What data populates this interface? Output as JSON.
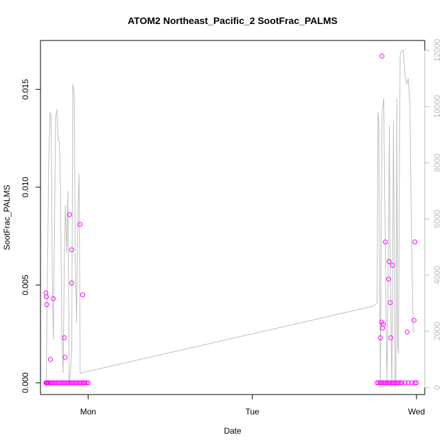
{
  "chart_data": {
    "type": "scatter",
    "title": "ATOM2 Northeast_Pacific_2 SootFrac_PALMS",
    "xlabel": "Date",
    "ylabel": "SootFrac_PALMS",
    "y2label": "",
    "x_ticks": [
      "Mon",
      "Tue",
      "Wed"
    ],
    "x_tick_positions": [
      0,
      1,
      2
    ],
    "xlim": [
      -0.29,
      2.05
    ],
    "ylim": [
      -0.0006,
      0.0175
    ],
    "y_ticks": [
      0.0,
      0.005,
      0.01,
      0.015
    ],
    "y_tick_labels": [
      "0.000",
      "0.005",
      "0.010",
      "0.015"
    ],
    "y2lim": [
      -250,
      12350
    ],
    "y2_ticks": [
      0,
      2000,
      4000,
      6000,
      8000,
      10000,
      12000
    ],
    "y2_tick_labels": [
      "0",
      "2000",
      "4000",
      "6000",
      "8000",
      "10000",
      "12000"
    ],
    "grid": false,
    "legend": "none",
    "colors": {
      "points": "#ff00ff",
      "altitude_line": "#bebebe",
      "axis": "#000000",
      "right_axis": "#bdbdbd"
    },
    "series": [
      {
        "role": "points",
        "x": [
          -0.257,
          -0.255,
          -0.253,
          -0.25,
          -0.245,
          -0.24,
          -0.23,
          -0.22,
          -0.21,
          -0.2,
          -0.19,
          -0.18,
          -0.17,
          -0.16,
          -0.15,
          -0.14,
          -0.13,
          -0.12,
          -0.11,
          -0.1,
          -0.09,
          -0.08,
          -0.07,
          -0.06,
          -0.05,
          -0.04,
          -0.03,
          -0.02,
          -0.01,
          0.0,
          -0.257,
          -0.254,
          -0.252,
          -0.23,
          -0.212,
          -0.145,
          -0.14,
          -0.113,
          -0.1,
          -0.1,
          -0.049,
          -0.033,
          1.76,
          1.77,
          1.78,
          1.79,
          1.8,
          1.81,
          1.82,
          1.83,
          1.84,
          1.85,
          1.86,
          1.87,
          1.88,
          1.89,
          1.9,
          1.91,
          1.93,
          1.95,
          1.97,
          1.99,
          2.0,
          1.78,
          1.787,
          1.79,
          1.793,
          1.797,
          1.81,
          1.83,
          1.833,
          1.84,
          1.843,
          1.853,
          1.943,
          1.985,
          1.99
        ],
        "y": [
          0.0,
          0.0,
          0.0,
          0.0,
          0.0,
          0.0,
          0.0,
          0.0,
          0.0,
          0.0,
          0.0,
          0.0,
          0.0,
          0.0,
          0.0,
          0.0,
          0.0,
          0.0,
          0.0,
          0.0,
          0.0,
          0.0,
          0.0,
          0.0,
          0.0,
          0.0,
          0.0,
          0.0,
          0.0,
          0.0,
          0.0046,
          0.0044,
          0.004,
          0.0012,
          0.0043,
          0.0023,
          0.0013,
          0.0086,
          0.0068,
          0.0051,
          0.0081,
          0.0045,
          0.0,
          0.0,
          0.0,
          0.0,
          0.0,
          0.0,
          0.0,
          0.0,
          0.0,
          0.0,
          0.0,
          0.0,
          0.0,
          0.0,
          0.0,
          0.0,
          0.0,
          0.0,
          0.0,
          0.0,
          0.0,
          0.0023,
          0.0031,
          0.0167,
          0.0028,
          0.003,
          0.0072,
          0.0053,
          0.0062,
          0.0041,
          0.0023,
          0.006,
          0.0026,
          0.0032,
          0.0072
        ]
      },
      {
        "role": "line",
        "x": [
          -0.255,
          -0.248,
          -0.24,
          -0.232,
          -0.225,
          -0.218,
          -0.212,
          -0.205,
          -0.198,
          -0.19,
          -0.183,
          -0.175,
          -0.168,
          -0.16,
          -0.152,
          -0.145,
          -0.138,
          -0.13,
          -0.123,
          -0.115,
          -0.108,
          -0.1,
          -0.093,
          -0.085,
          -0.078,
          -0.07,
          -0.063,
          -0.055,
          -0.048,
          -0.04,
          -0.033,
          -0.025,
          -0.018,
          -0.01,
          -0.003,
          1.74,
          1.76,
          1.765,
          1.77,
          1.78,
          1.785,
          1.79,
          1.8,
          1.81,
          1.82,
          1.83,
          1.835,
          1.84,
          1.85,
          1.86,
          1.87,
          1.875,
          1.88,
          1.885,
          1.89,
          1.9,
          1.91,
          1.92,
          1.93,
          1.94,
          1.95,
          1.96,
          1.97,
          1.98,
          1.99
        ],
        "y2": [
          0,
          4000,
          8000,
          9800,
          9700,
          4000,
          1700,
          5200,
          9600,
          9900,
          8800,
          8800,
          7000,
          2000,
          500,
          4500,
          6500,
          4800,
          7000,
          100,
          600,
          1200,
          10800,
          10500,
          4500,
          2300,
          6000,
          7600,
          500,
          500,
          550,
          550,
          550,
          560,
          570,
          2900,
          3000,
          9800,
          9500,
          0,
          5500,
          9700,
          10300,
          4800,
          100,
          5500,
          9300,
          4000,
          0,
          9500,
          0,
          500,
          10300,
          1500,
          1200,
          11800,
          12000,
          12000,
          11100,
          10800,
          11000,
          10000,
          5000,
          2000,
          2000
        ]
      }
    ]
  }
}
